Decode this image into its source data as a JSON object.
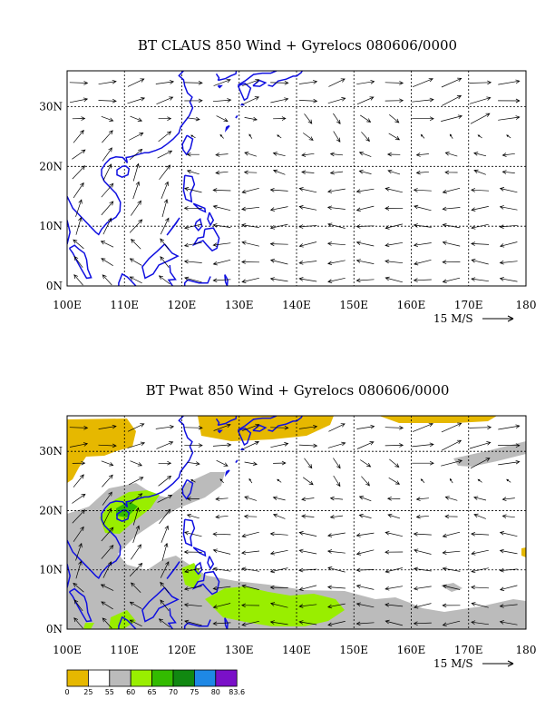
{
  "chart_data": [
    {
      "type": "vector",
      "title": "BT CLAUS 850 Wind + Gyrelocs 080606/0000",
      "x_ticks": [
        "100E",
        "110E",
        "120E",
        "130E",
        "140E",
        "150E",
        "160E",
        "170E",
        "180"
      ],
      "y_ticks": [
        "0N",
        "10N",
        "20N",
        "30N"
      ],
      "xlim": [
        100,
        180
      ],
      "ylim": [
        0,
        36
      ],
      "grid": true,
      "reference_vector": "15 M/S",
      "coastline_color": "#1010e0",
      "wind_field": "easterly trade winds below 20N, westerly flow north of 30N"
    },
    {
      "type": "vector",
      "title": "BT Pwat 850 Wind + Gyrelocs 080606/0000",
      "x_ticks": [
        "100E",
        "110E",
        "120E",
        "130E",
        "140E",
        "150E",
        "160E",
        "170E",
        "180"
      ],
      "y_ticks": [
        "0N",
        "10N",
        "20N",
        "30N"
      ],
      "xlim": [
        100,
        180
      ],
      "ylim": [
        0,
        36
      ],
      "grid": true,
      "reference_vector": "15 M/S",
      "coastline_color": "#1010e0",
      "colorbar": {
        "labels": [
          "0",
          "25",
          "55",
          "60",
          "65",
          "70",
          "75",
          "80",
          "83.6"
        ],
        "colors": [
          "#e6b800",
          "#ffffff",
          "#bbbbbb",
          "#99ee00",
          "#33bb00",
          "#118811",
          "#1e88e5",
          "#7a10c8"
        ]
      }
    }
  ]
}
